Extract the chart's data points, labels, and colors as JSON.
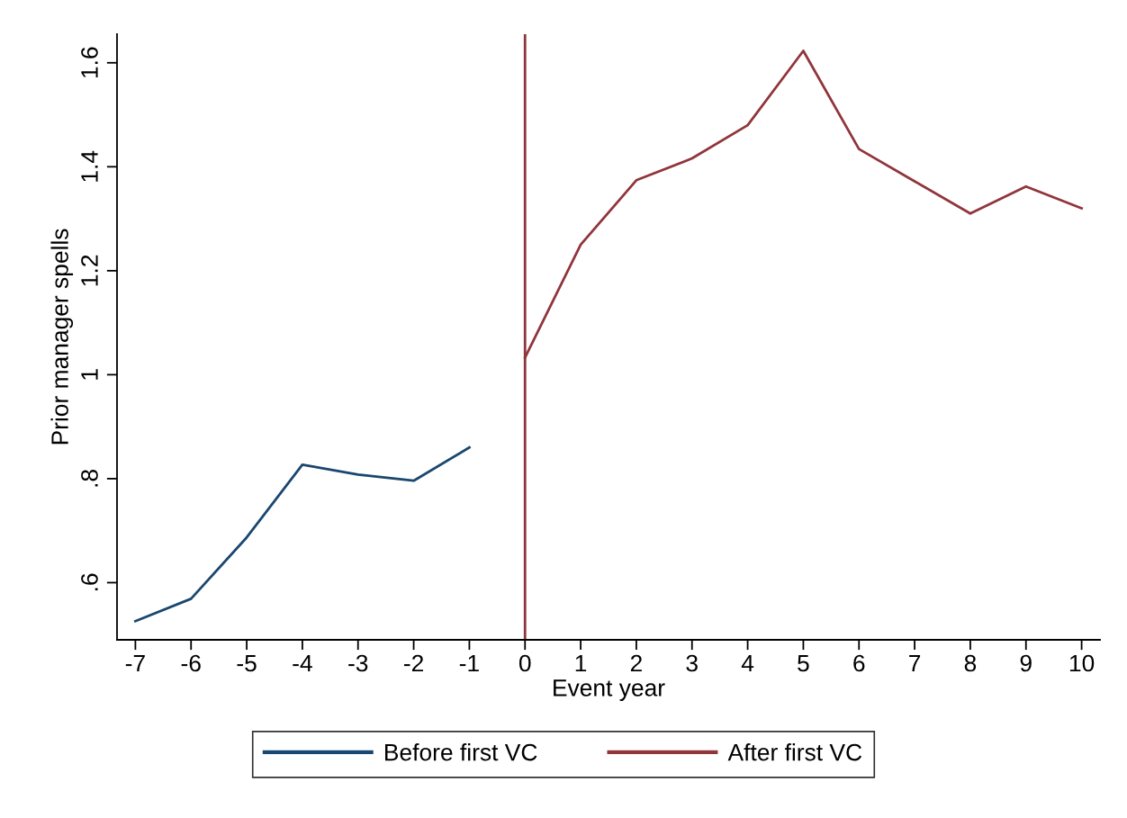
{
  "chart_data": {
    "type": "line",
    "xlabel": "Event year",
    "ylabel": "Prior manager spells",
    "series": [
      {
        "name": "Before first VC",
        "color": "#1a476f",
        "x": [
          -7,
          -6,
          -5,
          -4,
          -3,
          -2,
          -1
        ],
        "values": [
          0.526,
          0.569,
          0.687,
          0.827,
          0.808,
          0.796,
          0.86
        ]
      },
      {
        "name": "After first VC",
        "color": "#90353b",
        "x": [
          0,
          1,
          2,
          3,
          4,
          5,
          6,
          7,
          8,
          9,
          10
        ],
        "values": [
          1.033,
          1.25,
          1.374,
          1.416,
          1.48,
          1.623,
          1.434,
          1.372,
          1.31,
          1.362,
          1.32
        ]
      }
    ],
    "xlim": [
      -7.33,
      10.33
    ],
    "xticks": [
      -7,
      -6,
      -5,
      -4,
      -3,
      -2,
      -1,
      0,
      1,
      2,
      3,
      4,
      5,
      6,
      7,
      8,
      9,
      10
    ],
    "ylim": [
      0.49,
      1.655
    ],
    "yticks": [
      {
        "value": 0.6,
        "label": ".6"
      },
      {
        "value": 0.8,
        "label": ".8"
      },
      1,
      {
        "value": 1.2,
        "label": "1.2"
      },
      {
        "value": 1.4,
        "label": "1.4"
      },
      {
        "value": 1.6,
        "label": "1.6"
      }
    ],
    "ref_lines": [
      {
        "axis": "x",
        "value": 0,
        "color": "#90353b"
      }
    ],
    "grid": false,
    "legend": "bottom",
    "marker": "none",
    "line_style": "solid"
  }
}
